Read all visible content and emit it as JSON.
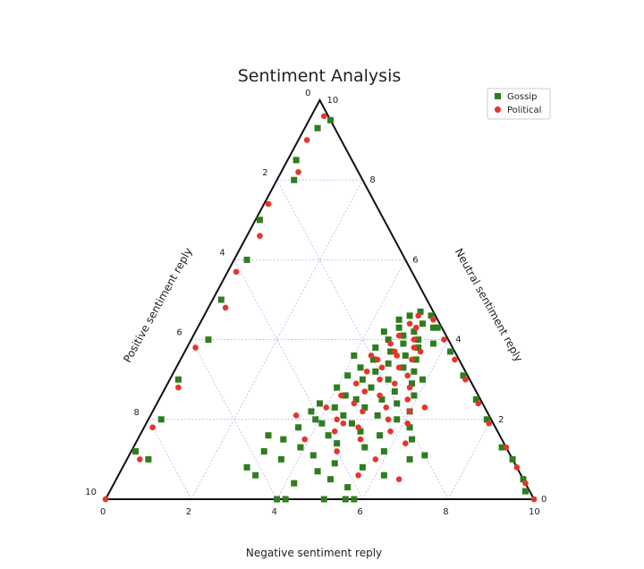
{
  "chart_data": {
    "type": "scatter",
    "subtype": "ternary",
    "title": "Sentiment Analysis",
    "scale": 10,
    "axes": {
      "bottom": {
        "label": "Negative sentiment reply",
        "ticks": [
          "0",
          "2",
          "4",
          "6",
          "8",
          "10"
        ]
      },
      "left": {
        "label": "Positive sentiment reply",
        "ticks": [
          "0",
          "2",
          "4",
          "6",
          "8",
          "10"
        ]
      },
      "right": {
        "label": "Neutral sentiment reply",
        "ticks": [
          "0",
          "2",
          "4",
          "6",
          "8",
          "10"
        ]
      }
    },
    "grid": true,
    "grid_step": 2,
    "legend": {
      "position": "top-right"
    },
    "series": [
      {
        "name": "Gossip",
        "marker": "square",
        "color": "#2e7d1e",
        "points": [
          [
            5,
            4.7
          ],
          [
            4.8,
            4.6
          ],
          [
            5.2,
            4.4
          ],
          [
            4.7,
            4.3
          ],
          [
            5.1,
            4.2
          ],
          [
            4.9,
            4.1
          ],
          [
            5.3,
            4.0
          ],
          [
            4.6,
            4.0
          ],
          [
            5.0,
            3.9
          ],
          [
            4.4,
            3.8
          ],
          [
            5.4,
            3.8
          ],
          [
            4.8,
            3.7
          ],
          [
            5.2,
            3.6
          ],
          [
            4.5,
            3.5
          ],
          [
            5.5,
            3.5
          ],
          [
            4.9,
            3.4
          ],
          [
            4.3,
            3.3
          ],
          [
            5.3,
            3.3
          ],
          [
            4.7,
            3.2
          ],
          [
            5.6,
            3.2
          ],
          [
            4.1,
            3.1
          ],
          [
            5.1,
            3.0
          ],
          [
            4.5,
            3.0
          ],
          [
            5.7,
            2.9
          ],
          [
            4.0,
            2.8
          ],
          [
            4.8,
            2.8
          ],
          [
            5.4,
            2.7
          ],
          [
            4.3,
            2.6
          ],
          [
            5.9,
            2.6
          ],
          [
            4.6,
            2.5
          ],
          [
            5.2,
            2.5
          ],
          [
            3.8,
            2.4
          ],
          [
            5.6,
            2.4
          ],
          [
            4.2,
            2.3
          ],
          [
            4.9,
            2.3
          ],
          [
            6.0,
            2.2
          ],
          [
            3.7,
            2.2
          ],
          [
            4.5,
            2.1
          ],
          [
            5.3,
            2.1
          ],
          [
            3.9,
            2.0
          ],
          [
            5.8,
            2.0
          ],
          [
            4.1,
            1.9
          ],
          [
            4.8,
            1.9
          ],
          [
            6.2,
            1.8
          ],
          [
            3.6,
            1.8
          ],
          [
            5.1,
            1.7
          ],
          [
            4.4,
            1.6
          ],
          [
            5.6,
            1.6
          ],
          [
            3.4,
            1.5
          ],
          [
            6.4,
            1.5
          ],
          [
            4.7,
            1.4
          ],
          [
            3.9,
            1.3
          ],
          [
            5.4,
            1.3
          ],
          [
            3.1,
            1.2
          ],
          [
            5.9,
            1.2
          ],
          [
            4.3,
            1.1
          ],
          [
            6.6,
            1.0
          ],
          [
            3.6,
            1.0
          ],
          [
            4.9,
            0.9
          ],
          [
            5.6,
            0.8
          ],
          [
            2.9,
            0.8
          ],
          [
            4.6,
            0.7
          ],
          [
            6.2,
            0.6
          ],
          [
            5.0,
            0.5
          ],
          [
            4.2,
            0.4
          ],
          [
            5.5,
            0.3
          ],
          [
            4.0,
            0.0
          ],
          [
            4.2,
            0.0
          ],
          [
            5.1,
            0.0
          ],
          [
            5.6,
            0.0
          ],
          [
            5.8,
            0.0
          ],
          [
            3.2,
            0.6
          ],
          [
            6.9,
            1.1
          ],
          [
            3.0,
            1.6
          ],
          [
            5.9,
            3.0
          ],
          [
            4.0,
            3.6
          ],
          [
            5.7,
            3.9
          ],
          [
            4.4,
            4.2
          ],
          [
            5.5,
            4.3
          ],
          [
            4.6,
            4.5
          ],
          [
            0.5,
            9.5
          ],
          [
            0.3,
            9.3
          ],
          [
            0.2,
            8.5
          ],
          [
            0.4,
            8.0
          ],
          [
            0.1,
            7.0
          ],
          [
            0.3,
            6.0
          ],
          [
            0.2,
            5.0
          ],
          [
            0.4,
            4.0
          ],
          [
            0.2,
            3.0
          ],
          [
            0.3,
            2.0
          ],
          [
            0.1,
            1.2
          ],
          [
            0.5,
            1.0
          ],
          [
            9.5,
            0.5
          ],
          [
            9.7,
            0.2
          ],
          [
            9.0,
            1.0
          ],
          [
            8.6,
            1.3
          ],
          [
            7.9,
            2.0
          ],
          [
            7.4,
            2.5
          ],
          [
            6.8,
            3.1
          ],
          [
            6.2,
            3.7
          ],
          [
            5.6,
            4.3
          ],
          [
            5.3,
            4.6
          ]
        ]
      },
      {
        "name": "Political",
        "marker": "circle",
        "color": "#e8342a",
        "points": [
          [
            5,
            4.6
          ],
          [
            4.9,
            4.4
          ],
          [
            5.1,
            4.3
          ],
          [
            4.8,
            4.1
          ],
          [
            5.2,
            4.0
          ],
          [
            4.7,
            3.9
          ],
          [
            5.3,
            3.8
          ],
          [
            4.9,
            3.7
          ],
          [
            5.0,
            3.6
          ],
          [
            4.6,
            3.5
          ],
          [
            5.4,
            3.5
          ],
          [
            4.8,
            3.3
          ],
          [
            5.2,
            3.3
          ],
          [
            4.5,
            3.2
          ],
          [
            5.5,
            3.1
          ],
          [
            4.9,
            3.0
          ],
          [
            5.3,
            2.9
          ],
          [
            4.4,
            2.9
          ],
          [
            5.7,
            2.8
          ],
          [
            4.7,
            2.7
          ],
          [
            5.1,
            2.6
          ],
          [
            4.2,
            2.6
          ],
          [
            5.8,
            2.5
          ],
          [
            4.6,
            2.4
          ],
          [
            5.4,
            2.3
          ],
          [
            4.0,
            2.3
          ],
          [
            6.0,
            2.2
          ],
          [
            4.9,
            2.2
          ],
          [
            5.6,
            2.0
          ],
          [
            4.4,
            2.0
          ],
          [
            6.1,
            1.9
          ],
          [
            5.0,
            1.8
          ],
          [
            4.5,
            1.7
          ],
          [
            5.8,
            1.7
          ],
          [
            5.2,
            1.5
          ],
          [
            3.9,
            1.5
          ],
          [
            6.3,
            1.4
          ],
          [
            4.8,
            1.2
          ],
          [
            5.8,
            1.0
          ],
          [
            5.6,
            0.6
          ],
          [
            6.6,
            0.5
          ],
          [
            4.6,
            1.9
          ],
          [
            5.5,
            3.7
          ],
          [
            4.4,
            3.6
          ],
          [
            3.4,
            2.1
          ],
          [
            6.3,
            2.3
          ],
          [
            0.3,
            9.6
          ],
          [
            0.2,
            9.0
          ],
          [
            0.4,
            8.2
          ],
          [
            0.1,
            7.4
          ],
          [
            0.3,
            6.6
          ],
          [
            0.2,
            5.7
          ],
          [
            0.4,
            4.8
          ],
          [
            0.2,
            3.8
          ],
          [
            0.3,
            2.8
          ],
          [
            0.2,
            1.8
          ],
          [
            0.3,
            1.0
          ],
          [
            0.0,
            0.0
          ],
          [
            9.6,
            0.4
          ],
          [
            9.2,
            0.8
          ],
          [
            8.7,
            1.3
          ],
          [
            8.0,
            1.9
          ],
          [
            7.5,
            2.4
          ],
          [
            6.9,
            3.0
          ],
          [
            6.4,
            3.5
          ],
          [
            5.9,
            4.0
          ],
          [
            5.4,
            4.5
          ],
          [
            10,
            0.0
          ]
        ]
      }
    ]
  }
}
